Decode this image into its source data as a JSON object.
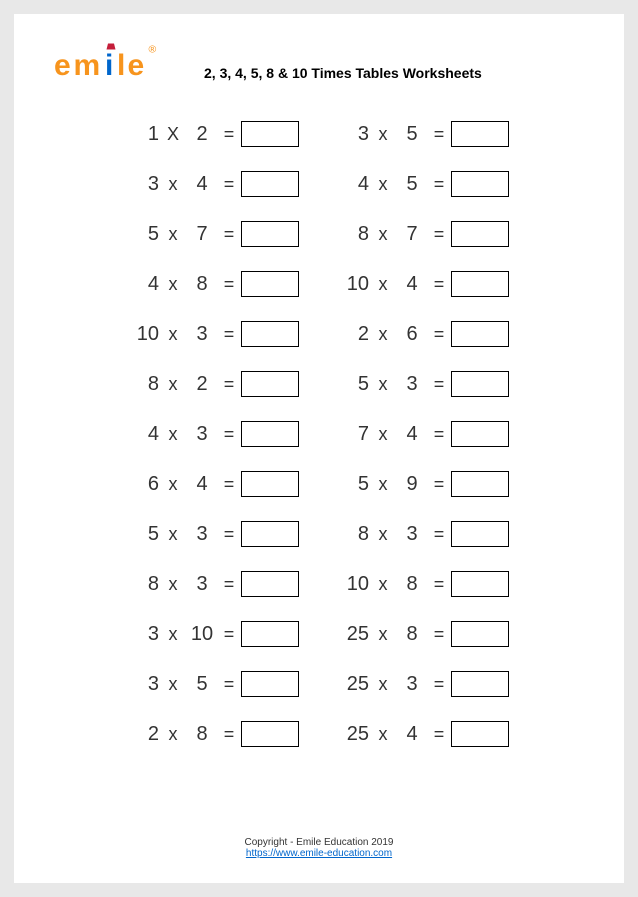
{
  "header": {
    "logo_text": "emile",
    "logo_colors": {
      "e1": "#f7941d",
      "m": "#f7941d",
      "i": "#0066cc",
      "l": "#f7941d",
      "e2": "#f7941d",
      "reg": "#f7941d"
    },
    "title": "2, 3, 4, 5, 8 & 10 Times Tables Worksheets"
  },
  "problems": {
    "left": [
      {
        "a": "1",
        "op": "X",
        "b": "2"
      },
      {
        "a": "3",
        "op": "x",
        "b": "4"
      },
      {
        "a": "5",
        "op": "x",
        "b": "7"
      },
      {
        "a": "4",
        "op": "x",
        "b": "8"
      },
      {
        "a": "10",
        "op": "x",
        "b": "3"
      },
      {
        "a": "8",
        "op": "x",
        "b": "2"
      },
      {
        "a": "4",
        "op": "x",
        "b": "3"
      },
      {
        "a": "6",
        "op": "x",
        "b": "4"
      },
      {
        "a": "5",
        "op": "x",
        "b": "3"
      },
      {
        "a": "8",
        "op": "x",
        "b": "3"
      },
      {
        "a": "3",
        "op": "x",
        "b": "10"
      },
      {
        "a": "3",
        "op": "x",
        "b": "5"
      },
      {
        "a": "2",
        "op": "x",
        "b": "8"
      }
    ],
    "right": [
      {
        "a": "3",
        "op": "x",
        "b": "5"
      },
      {
        "a": "4",
        "op": "x",
        "b": "5"
      },
      {
        "a": "8",
        "op": "x",
        "b": "7"
      },
      {
        "a": "10",
        "op": "x",
        "b": "4"
      },
      {
        "a": "2",
        "op": "x",
        "b": "6"
      },
      {
        "a": "5",
        "op": "x",
        "b": "3"
      },
      {
        "a": "7",
        "op": "x",
        "b": "4"
      },
      {
        "a": "5",
        "op": "x",
        "b": "9"
      },
      {
        "a": "8",
        "op": "x",
        "b": "3"
      },
      {
        "a": "10",
        "op": "x",
        "b": "8"
      },
      {
        "a": "25",
        "op": "x",
        "b": "8"
      },
      {
        "a": "25",
        "op": "x",
        "b": "3"
      },
      {
        "a": "25",
        "op": "x",
        "b": "4"
      }
    ]
  },
  "footer": {
    "copyright": "Copyright - Emile Education 2019",
    "url": "https://www.emile-education.com"
  }
}
